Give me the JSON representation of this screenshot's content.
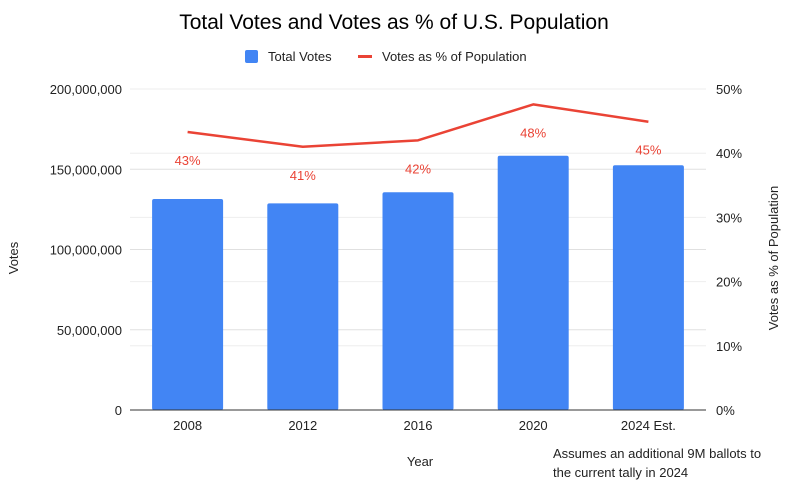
{
  "chart_data": {
    "type": "bar",
    "title": "Total Votes and Votes as % of U.S. Population",
    "xlabel": "Year",
    "ylabel": "Votes",
    "y2label": "Votes as % of Population",
    "categories": [
      "2008",
      "2012",
      "2016",
      "2020",
      "2024 Est."
    ],
    "series": [
      {
        "name": "Total Votes",
        "type": "bar",
        "axis": "left",
        "color": "#4285f4",
        "values": [
          131500000,
          128700000,
          135700000,
          158400000,
          152500000
        ]
      },
      {
        "name": "Votes as % of Population",
        "type": "line",
        "axis": "right",
        "color": "#ea4335",
        "values": [
          43.3,
          41.0,
          42.0,
          47.6,
          44.9
        ],
        "data_labels": [
          "43%",
          "41%",
          "42%",
          "48%",
          "45%"
        ]
      }
    ],
    "ylim": [
      0,
      200000000
    ],
    "y_ticks": [
      "0",
      "50,000,000",
      "100,000,000",
      "150,000,000",
      "200,000,000"
    ],
    "y2lim": [
      0,
      50
    ],
    "y2_ticks": [
      "0%",
      "10%",
      "20%",
      "30%",
      "40%",
      "50%"
    ],
    "legend": "top-center",
    "grid": true,
    "annotation": "Assumes an additional 9M ballots to the current tally in 2024"
  }
}
